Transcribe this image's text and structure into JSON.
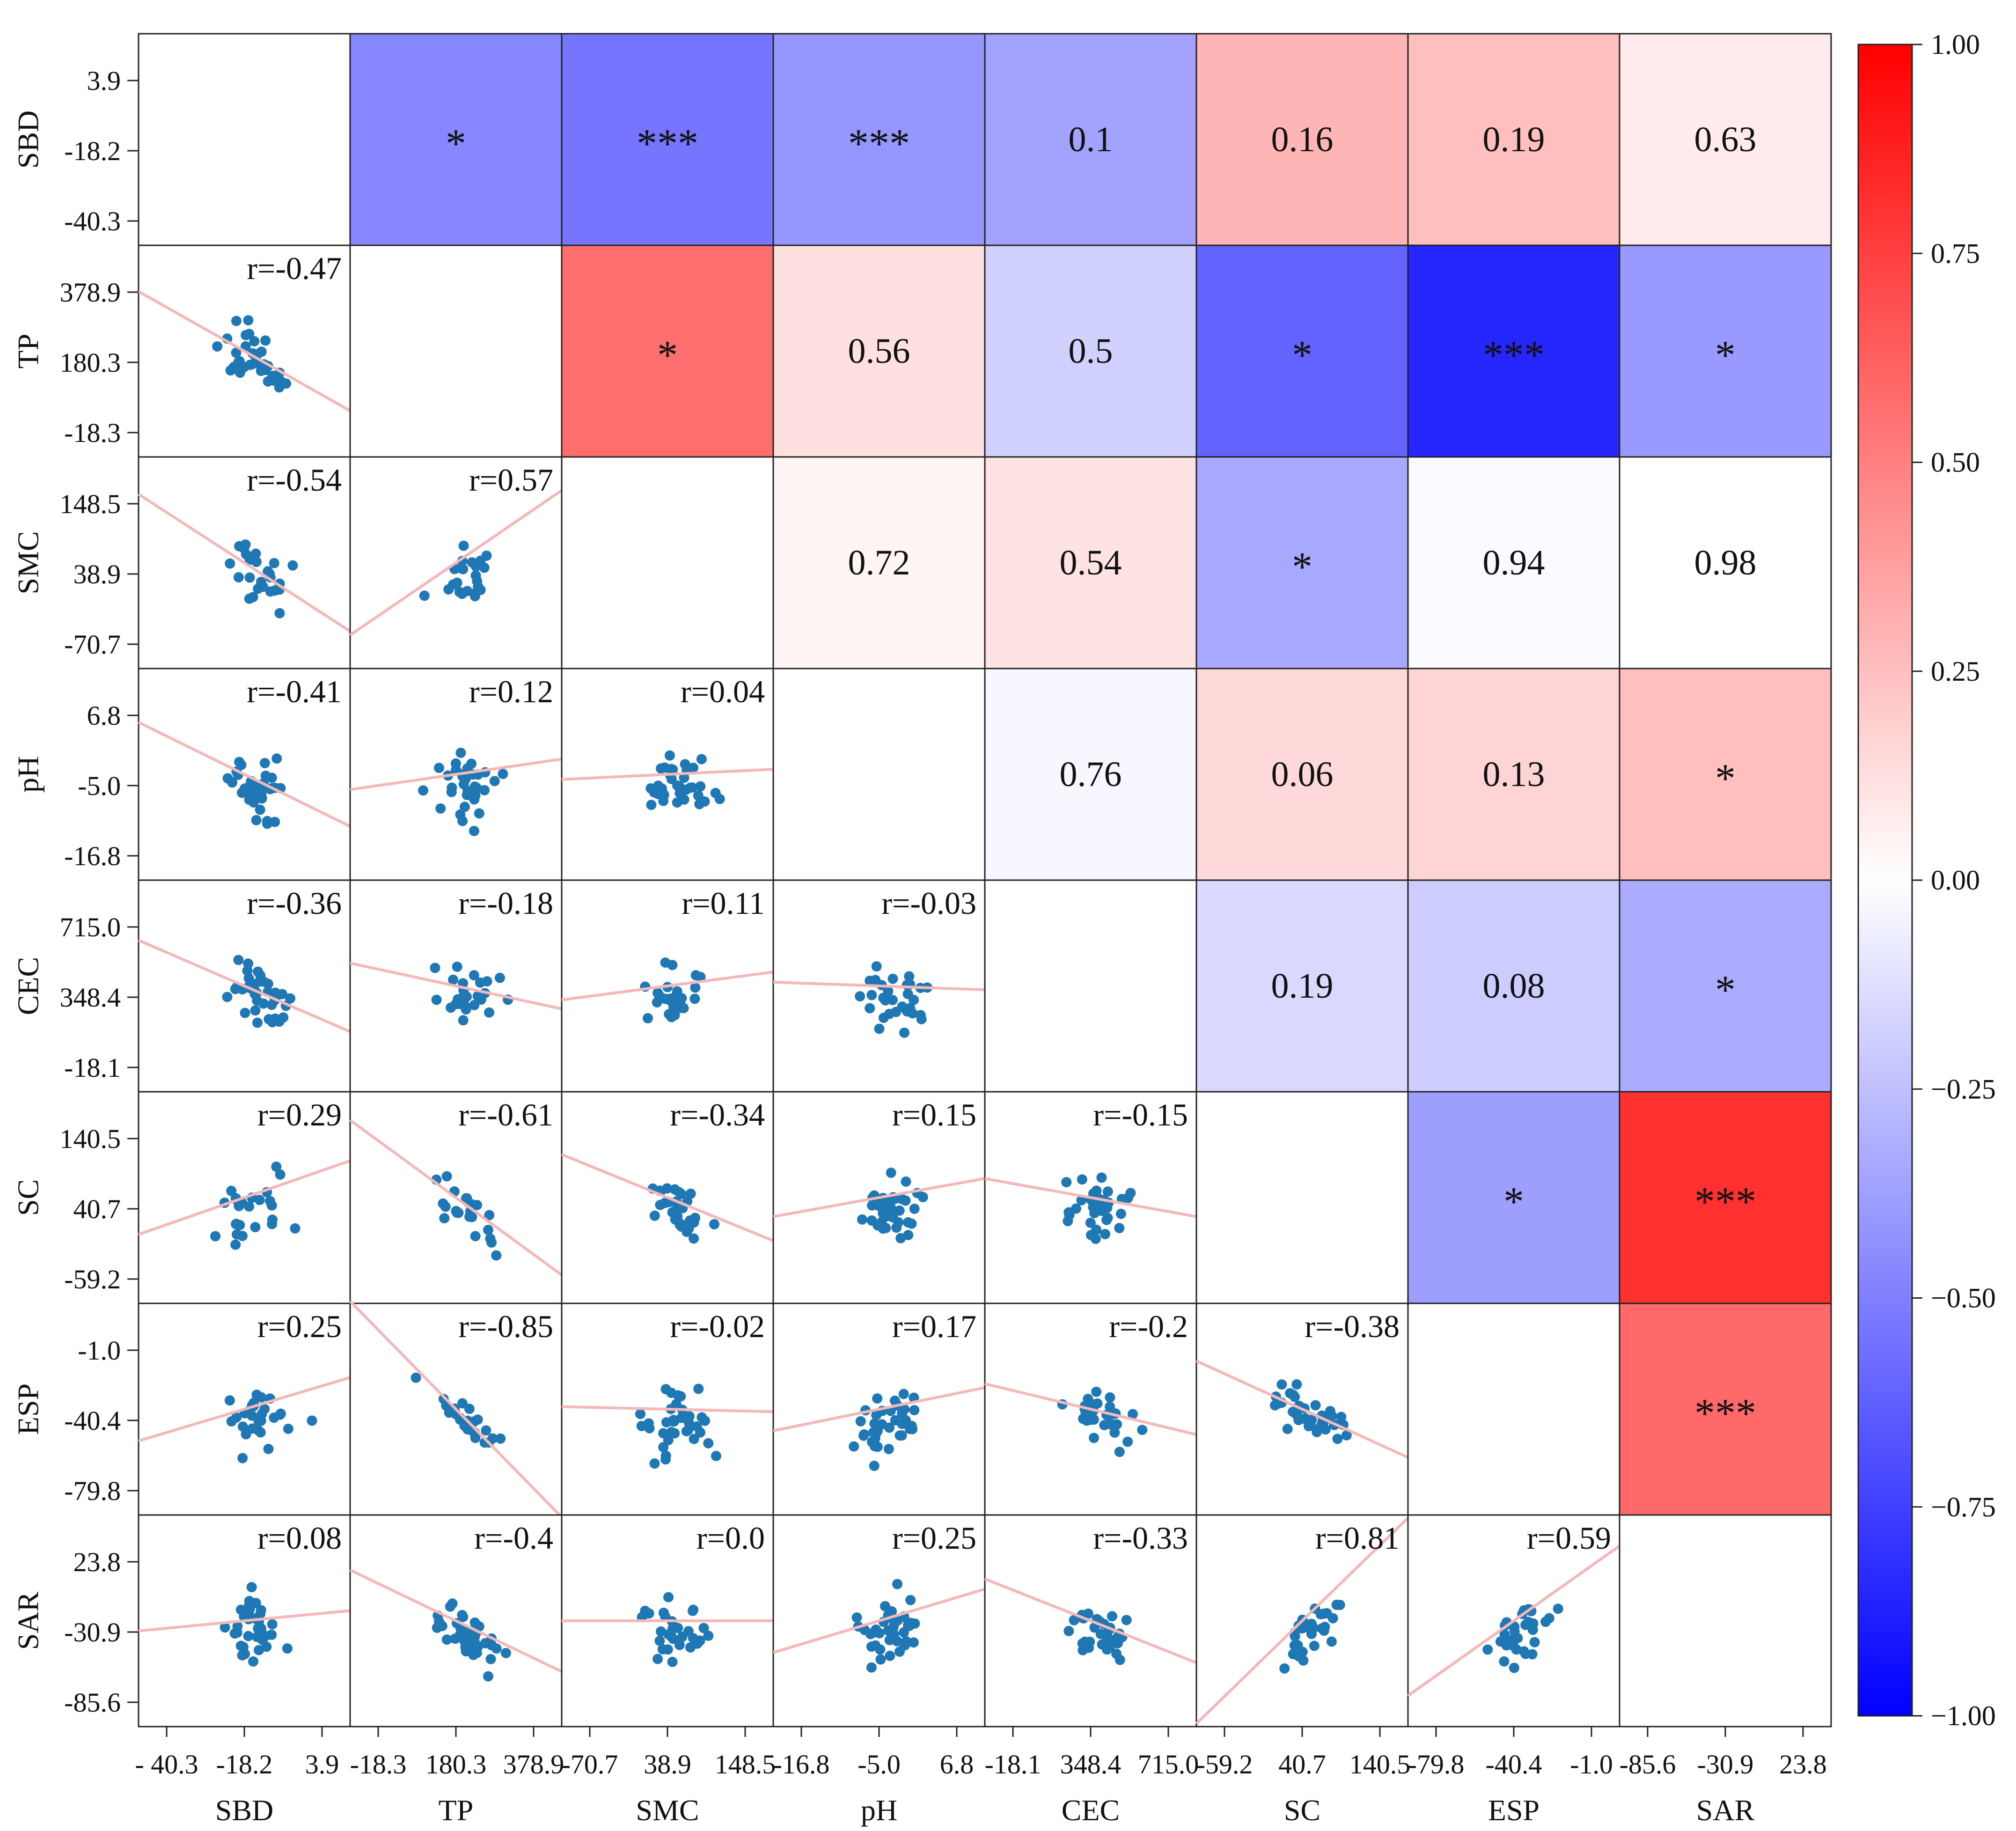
{
  "chart_data": {
    "type": "scatter-matrix-correlation-heatmap",
    "variables": [
      "SBD",
      "TP",
      "SMC",
      "pH",
      "CEC",
      "SC",
      "ESP",
      "SAR"
    ],
    "ticks": [
      [
        "3.9",
        "-18.2",
        "-40.3"
      ],
      [
        "378.9",
        "180.3",
        "-18.3"
      ],
      [
        "148.5",
        "38.9",
        "-70.7"
      ],
      [
        "6.8",
        "-5.0",
        "-16.8"
      ],
      [
        "715.0",
        "348.4",
        "-18.1"
      ],
      [
        "140.5",
        "40.7",
        "-59.2"
      ],
      [
        "-1.0",
        "-40.4",
        "-79.8"
      ],
      [
        "23.8",
        "-30.9",
        "-85.6"
      ]
    ],
    "x_ticks": [
      [
        "- 40.3",
        "-18.2",
        "3.9"
      ],
      [
        "-18.3",
        "180.3",
        "378.9"
      ],
      [
        "-70.7",
        "38.9",
        "148.5"
      ],
      [
        "-16.8",
        "-5.0",
        "6.8"
      ],
      [
        "-18.1",
        "348.4",
        "715.0"
      ],
      [
        "-59.2",
        "40.7",
        "140.5"
      ],
      [
        "-79.8",
        "-40.4",
        "-1.0"
      ],
      [
        "-85.6",
        "-30.9",
        "23.8"
      ]
    ],
    "correlations": [
      [
        null,
        -0.47,
        -0.54,
        -0.41,
        -0.36,
        0.29,
        0.25,
        0.08
      ],
      [
        -0.47,
        null,
        0.57,
        0.12,
        -0.18,
        -0.61,
        -0.85,
        -0.4
      ],
      [
        -0.54,
        0.57,
        null,
        0.04,
        0.11,
        -0.34,
        -0.02,
        0.0
      ],
      [
        -0.41,
        0.12,
        0.04,
        null,
        -0.03,
        0.15,
        0.17,
        0.25
      ],
      [
        -0.36,
        -0.18,
        0.11,
        -0.03,
        null,
        -0.15,
        -0.2,
        -0.33
      ],
      [
        0.29,
        -0.61,
        -0.34,
        0.15,
        -0.15,
        null,
        -0.38,
        0.81
      ],
      [
        0.25,
        -0.85,
        -0.02,
        0.17,
        -0.2,
        -0.38,
        null,
        0.59
      ],
      [
        0.08,
        -0.4,
        0.0,
        0.25,
        -0.33,
        0.81,
        0.59,
        null
      ]
    ],
    "lower_labels": [
      [
        null,
        null,
        null,
        null,
        null,
        null,
        null,
        null
      ],
      [
        "r=-0.47",
        null,
        null,
        null,
        null,
        null,
        null,
        null
      ],
      [
        "r=-0.54",
        "r=0.57",
        null,
        null,
        null,
        null,
        null,
        null
      ],
      [
        "r=-0.41",
        "r=0.12",
        "r=0.04",
        null,
        null,
        null,
        null,
        null
      ],
      [
        "r=-0.36",
        "r=-0.18",
        "r=0.11",
        "r=-0.03",
        null,
        null,
        null,
        null
      ],
      [
        "r=0.29",
        "r=-0.61",
        "r=-0.34",
        "r=0.15",
        "r=-0.15",
        null,
        null,
        null
      ],
      [
        "r=0.25",
        "r=-0.85",
        "r=-0.02",
        "r=0.17",
        "r=-0.2",
        "r=-0.38",
        null,
        null
      ],
      [
        "r=0.08",
        "r=-0.4",
        "r=0.0",
        "r=0.25",
        "r=-0.33",
        "r=0.81",
        "r=0.59",
        null
      ]
    ],
    "upper_labels": [
      [
        null,
        "*",
        "***",
        "***",
        "0.1",
        "0.16",
        "0.19",
        "0.63"
      ],
      [
        null,
        null,
        "*",
        "0.56",
        "0.5",
        "*",
        "***",
        "*"
      ],
      [
        null,
        null,
        null,
        "0.72",
        "0.54",
        "*",
        "0.94",
        "0.98"
      ],
      [
        null,
        null,
        null,
        null,
        "0.76",
        "0.06",
        "0.13",
        "*"
      ],
      [
        null,
        null,
        null,
        null,
        null,
        "0.19",
        "0.08",
        "*"
      ],
      [
        null,
        null,
        null,
        null,
        null,
        null,
        "*",
        "***"
      ],
      [
        null,
        null,
        null,
        null,
        null,
        null,
        null,
        "***"
      ],
      [
        null,
        null,
        null,
        null,
        null,
        null,
        null,
        null
      ]
    ],
    "colorbar": {
      "range": [
        -1.0,
        1.0
      ],
      "ticks": [
        "1.00",
        "0.75",
        "0.50",
        "0.25",
        "0.00",
        "−0.25",
        "−0.50",
        "−0.75",
        "−1.00"
      ],
      "colors": {
        "negative": "#0000ff",
        "zero": "#ffffff",
        "positive": "#ff0000"
      }
    },
    "point_color": "#1f77b4",
    "fit_line_color": "#f4b8b8"
  }
}
